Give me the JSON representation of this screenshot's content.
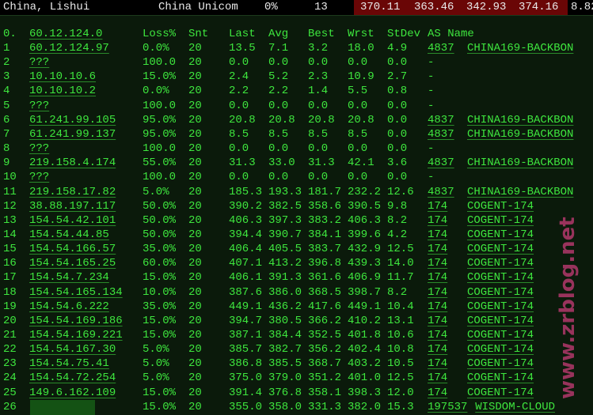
{
  "top": {
    "location": "China, Lishui",
    "isp": "China Unicom",
    "loss": "0%",
    "hops": "13",
    "values": [
      "370.11",
      "363.46",
      "342.93",
      "374.16"
    ],
    "last": "8.82"
  },
  "header": {
    "idx": "0.",
    "host": "60.12.124.0",
    "loss": "Loss%",
    "snt": "Snt",
    "last": "Last",
    "avg": "Avg",
    "best": "Best",
    "wrst": "Wrst",
    "stdev": "StDev",
    "as": "AS Name"
  },
  "rows": [
    [
      "1",
      "60.12.124.97",
      "0.0%",
      "20",
      "13.5",
      "7.1",
      "3.2",
      "18.0",
      "4.9",
      "4837",
      "CHINA169-BACKBON"
    ],
    [
      "2",
      "???",
      "100.0",
      "20",
      "0.0",
      "0.0",
      "0.0",
      "0.0",
      "0.0",
      "-",
      ""
    ],
    [
      "3",
      "10.10.10.6",
      "15.0%",
      "20",
      "2.4",
      "5.2",
      "2.3",
      "10.9",
      "2.7",
      "-",
      ""
    ],
    [
      "4",
      "10.10.10.2",
      "0.0%",
      "20",
      "2.2",
      "2.2",
      "1.4",
      "5.5",
      "0.8",
      "-",
      ""
    ],
    [
      "5",
      "???",
      "100.0",
      "20",
      "0.0",
      "0.0",
      "0.0",
      "0.0",
      "0.0",
      "-",
      ""
    ],
    [
      "6",
      "61.241.99.105",
      "95.0%",
      "20",
      "20.8",
      "20.8",
      "20.8",
      "20.8",
      "0.0",
      "4837",
      "CHINA169-BACKBON"
    ],
    [
      "7",
      "61.241.99.137",
      "95.0%",
      "20",
      "8.5",
      "8.5",
      "8.5",
      "8.5",
      "0.0",
      "4837",
      "CHINA169-BACKBON"
    ],
    [
      "8",
      "???",
      "100.0",
      "20",
      "0.0",
      "0.0",
      "0.0",
      "0.0",
      "0.0",
      "-",
      ""
    ],
    [
      "9",
      "219.158.4.174",
      "55.0%",
      "20",
      "31.3",
      "33.0",
      "31.3",
      "42.1",
      "3.6",
      "4837",
      "CHINA169-BACKBON"
    ],
    [
      "10",
      "???",
      "100.0",
      "20",
      "0.0",
      "0.0",
      "0.0",
      "0.0",
      "0.0",
      "-",
      ""
    ],
    [
      "11",
      "219.158.17.82",
      "5.0%",
      "20",
      "185.3",
      "193.3",
      "181.7",
      "232.2",
      "12.6",
      "4837",
      "CHINA169-BACKBON"
    ],
    [
      "12",
      "38.88.197.117",
      "50.0%",
      "20",
      "390.2",
      "382.5",
      "358.6",
      "390.5",
      "9.8",
      "174",
      "COGENT-174"
    ],
    [
      "13",
      "154.54.42.101",
      "50.0%",
      "20",
      "406.3",
      "397.3",
      "383.2",
      "406.3",
      "8.2",
      "174",
      "COGENT-174"
    ],
    [
      "14",
      "154.54.44.85",
      "50.0%",
      "20",
      "394.4",
      "390.7",
      "384.1",
      "399.6",
      "4.2",
      "174",
      "COGENT-174"
    ],
    [
      "15",
      "154.54.166.57",
      "35.0%",
      "20",
      "406.4",
      "405.5",
      "383.7",
      "432.9",
      "12.5",
      "174",
      "COGENT-174"
    ],
    [
      "16",
      "154.54.165.25",
      "60.0%",
      "20",
      "407.1",
      "413.2",
      "396.8",
      "439.3",
      "14.0",
      "174",
      "COGENT-174"
    ],
    [
      "17",
      "154.54.7.234",
      "15.0%",
      "20",
      "406.1",
      "391.3",
      "361.6",
      "406.9",
      "11.7",
      "174",
      "COGENT-174"
    ],
    [
      "18",
      "154.54.165.134",
      "10.0%",
      "20",
      "387.6",
      "386.0",
      "368.5",
      "398.7",
      "8.2",
      "174",
      "COGENT-174"
    ],
    [
      "19",
      "154.54.6.222",
      "35.0%",
      "20",
      "449.1",
      "436.2",
      "417.6",
      "449.1",
      "10.4",
      "174",
      "COGENT-174"
    ],
    [
      "20",
      "154.54.169.186",
      "15.0%",
      "20",
      "394.7",
      "380.5",
      "366.2",
      "410.2",
      "13.1",
      "174",
      "COGENT-174"
    ],
    [
      "21",
      "154.54.169.221",
      "15.0%",
      "20",
      "387.1",
      "384.4",
      "352.5",
      "401.8",
      "10.6",
      "174",
      "COGENT-174"
    ],
    [
      "22",
      "154.54.167.30",
      "5.0%",
      "20",
      "385.7",
      "382.7",
      "356.2",
      "402.4",
      "10.8",
      "174",
      "COGENT-174"
    ],
    [
      "23",
      "154.54.75.41",
      "5.0%",
      "20",
      "386.8",
      "385.5",
      "368.7",
      "403.2",
      "10.5",
      "174",
      "COGENT-174"
    ],
    [
      "24",
      "154.54.72.254",
      "5.0%",
      "20",
      "375.0",
      "379.0",
      "351.2",
      "401.0",
      "12.5",
      "174",
      "COGENT-174"
    ],
    [
      "25",
      "149.6.162.109",
      "15.0%",
      "20",
      "391.4",
      "376.8",
      "358.1",
      "398.3",
      "12.0",
      "174",
      "COGENT-174"
    ],
    [
      "26",
      "",
      "15.0%",
      "20",
      "355.0",
      "358.0",
      "331.3",
      "382.0",
      "15.3",
      "197537",
      "WISDOM-CLOUD"
    ]
  ],
  "watermark": "www.zrblog.net",
  "colors": {
    "background": "#0b1a0b",
    "text": "#3ee63e",
    "header_bar": "#000000",
    "highlight": "#6a0606"
  }
}
